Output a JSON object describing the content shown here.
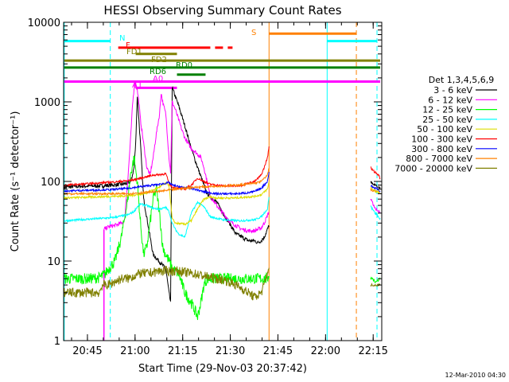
{
  "chart_data": {
    "type": "line",
    "title": "HESSI Observing Summary Count Rates",
    "xlabel": "Start Time (29-Nov-03 20:37:42)",
    "ylabel": "Count Rate (s⁻¹ detector⁻¹)",
    "yscale": "log",
    "ylim": [
      1,
      10000
    ],
    "xlim_minutes": [
      -0.2,
      100
    ],
    "x_ticks": [
      {
        "label": "20:45",
        "value": 7.3
      },
      {
        "label": "21:00",
        "value": 22.3
      },
      {
        "label": "21:15",
        "value": 37.3
      },
      {
        "label": "21:30",
        "value": 52.3
      },
      {
        "label": "21:45",
        "value": 67.3
      },
      {
        "label": "22:00",
        "value": 82.3
      },
      {
        "label": "22:15",
        "value": 97.3
      }
    ],
    "y_ticks": [
      {
        "label": "1",
        "value": 1
      },
      {
        "label": "10",
        "value": 10
      },
      {
        "label": "100",
        "value": 100
      },
      {
        "label": "1000",
        "value": 1000
      },
      {
        "label": "10000",
        "value": 10000
      }
    ],
    "legend_title": "Det 1,3,4,5,6,9",
    "series": [
      {
        "name": "3 - 6 keV",
        "color": "#000000",
        "x": [
          0,
          5,
          10,
          12,
          15,
          18,
          20,
          21,
          22,
          22.5,
          23,
          24,
          25,
          28,
          32,
          33,
          33.5,
          34,
          36,
          38,
          40,
          42,
          44,
          45,
          48,
          50,
          52,
          54,
          56,
          58,
          60,
          61,
          62,
          63,
          64.5
        ],
        "y": [
          85,
          87,
          88,
          88,
          90,
          92,
          95,
          100,
          150,
          300,
          1200,
          300,
          60,
          12,
          8,
          4,
          3,
          1500,
          900,
          500,
          260,
          150,
          90,
          70,
          55,
          40,
          30,
          22,
          20,
          18,
          18,
          17,
          18,
          20,
          28
        ]
      },
      {
        "name": "6 - 12 keV",
        "color": "#ff00ff",
        "x": [
          12.5,
          14,
          16,
          18,
          19,
          19.5,
          20,
          20.5,
          21,
          21.5,
          22,
          22.3,
          22.6,
          23,
          23.5,
          24,
          25,
          26,
          27,
          28,
          29,
          30,
          30.5,
          31,
          32,
          33,
          33.5,
          34,
          35,
          36,
          37,
          38,
          39,
          40,
          41,
          42,
          43,
          44,
          45,
          46,
          48,
          50,
          52,
          54,
          56,
          58,
          60,
          62,
          63,
          64.5
        ],
        "y": [
          25,
          27,
          28,
          30,
          32,
          60,
          100,
          200,
          400,
          900,
          1500,
          1800,
          1700,
          1400,
          1000,
          600,
          300,
          150,
          120,
          200,
          400,
          700,
          1300,
          1000,
          700,
          200,
          130,
          1000,
          800,
          600,
          450,
          350,
          300,
          260,
          240,
          220,
          200,
          150,
          100,
          65,
          50,
          40,
          32,
          28,
          25,
          24,
          24,
          26,
          30,
          42
        ]
      },
      {
        "name": "12 - 25 keV",
        "color": "#00ff00",
        "x": [
          0,
          4,
          8,
          11,
          12,
          13,
          14,
          16,
          18,
          20,
          21,
          22,
          23,
          24,
          25,
          26,
          27,
          28,
          29,
          30,
          31,
          32,
          33,
          34,
          36,
          38,
          40,
          42,
          43,
          44,
          45,
          46,
          48,
          50,
          52,
          54,
          56,
          58,
          60,
          62,
          64,
          64.5
        ],
        "y": [
          6,
          6,
          6,
          6.2,
          6.5,
          7,
          8,
          10,
          20,
          60,
          130,
          200,
          100,
          30,
          12,
          15,
          30,
          60,
          80,
          40,
          15,
          12,
          10,
          8,
          7,
          4,
          3,
          2,
          3,
          5,
          6,
          6,
          6,
          6,
          6,
          6,
          6,
          6,
          6,
          6,
          6,
          7
        ]
      },
      {
        "name": "25 - 50 keV",
        "color": "#00ffff",
        "x": [
          0,
          5,
          10,
          15,
          20,
          22,
          23,
          24,
          26,
          28,
          30,
          32,
          33,
          34,
          35,
          36,
          38,
          40,
          42,
          44,
          46,
          50,
          55,
          60,
          62,
          64,
          64.5
        ],
        "y": [
          32,
          33,
          34,
          35,
          38,
          42,
          48,
          52,
          50,
          46,
          45,
          47,
          42,
          30,
          25,
          22,
          20,
          40,
          55,
          48,
          36,
          33,
          32,
          33,
          36,
          45,
          65
        ]
      },
      {
        "name": "50 - 100 keV",
        "color": "#dddd00",
        "x": [
          0,
          5,
          10,
          15,
          20,
          23,
          25,
          27,
          30,
          32,
          33,
          34,
          35,
          38,
          40,
          42,
          44,
          46,
          48,
          50,
          52,
          54,
          56,
          58,
          60,
          62,
          64,
          64.5
        ],
        "y": [
          62,
          63,
          64,
          65,
          66,
          68,
          70,
          75,
          85,
          95,
          90,
          34,
          30,
          29,
          32,
          45,
          60,
          64,
          62,
          62,
          62,
          62,
          63,
          64,
          65,
          68,
          80,
          100
        ]
      },
      {
        "name": "100 - 300 keV",
        "color": "#ff0000",
        "x": [
          0,
          5,
          10,
          15,
          20,
          22,
          24,
          26,
          28,
          30,
          32,
          33,
          34,
          36,
          38,
          40,
          42,
          44,
          46,
          48,
          50,
          52,
          54,
          56,
          58,
          60,
          62,
          63,
          64,
          64.5
        ],
        "y": [
          90,
          92,
          95,
          98,
          102,
          105,
          110,
          115,
          120,
          122,
          125,
          95,
          85,
          82,
          80,
          90,
          110,
          100,
          92,
          90,
          88,
          88,
          88,
          90,
          95,
          100,
          120,
          150,
          200,
          270
        ]
      },
      {
        "name": "300 - 800 keV",
        "color": "#0000ff",
        "x": [
          0,
          5,
          10,
          15,
          20,
          22,
          25,
          28,
          30,
          32,
          33,
          34,
          36,
          38,
          40,
          42,
          44,
          46,
          48,
          50,
          52,
          54,
          56,
          58,
          60,
          62,
          64,
          64.5
        ],
        "y": [
          76,
          77,
          78,
          79,
          82,
          84,
          87,
          90,
          92,
          95,
          97,
          90,
          86,
          84,
          82,
          78,
          74,
          72,
          70,
          70,
          70,
          70,
          71,
          72,
          75,
          82,
          100,
          130
        ]
      },
      {
        "name": "800 - 7000 keV",
        "color": "#ff8000",
        "x": [
          0,
          10,
          20,
          30,
          35,
          40,
          45,
          50,
          55,
          60,
          62,
          64,
          64.5
        ],
        "y": [
          70,
          70,
          70,
          75,
          80,
          84,
          86,
          88,
          90,
          95,
          100,
          120,
          150
        ]
      },
      {
        "name": "7000 - 20000 keV",
        "color": "#808000",
        "x": [
          0,
          5,
          8,
          10,
          11,
          12,
          14,
          16,
          18,
          20,
          22,
          24,
          26,
          28,
          30,
          32,
          34,
          36,
          38,
          40,
          42,
          44,
          46,
          48,
          50,
          52,
          54,
          56,
          58,
          60,
          62,
          63,
          64,
          64.5
        ],
        "y": [
          4,
          4,
          4,
          4,
          4,
          5,
          5,
          5.5,
          6,
          6,
          6.5,
          7,
          7,
          7.2,
          7.5,
          7.5,
          7.5,
          7.5,
          7.2,
          7,
          6.8,
          6.5,
          6.2,
          6,
          5.8,
          5.5,
          5,
          4.5,
          4,
          3.5,
          4,
          5,
          7,
          9
        ]
      }
    ],
    "right_segments": [
      {
        "color": "#ff0000",
        "x": [
          96.5,
          97,
          98,
          99,
          99.5
        ],
        "y": [
          150,
          140,
          130,
          120,
          110
        ]
      },
      {
        "color": "#000000",
        "x": [
          96.5,
          97,
          98,
          99,
          99.5
        ],
        "y": [
          100,
          95,
          90,
          85,
          82
        ]
      },
      {
        "color": "#0000ff",
        "x": [
          96.5,
          97,
          98,
          99,
          99.5
        ],
        "y": [
          90,
          86,
          82,
          78,
          75
        ]
      },
      {
        "color": "#ff8000",
        "x": [
          96.5,
          97,
          98,
          99,
          99.5
        ],
        "y": [
          80,
          78,
          76,
          74,
          72
        ]
      },
      {
        "color": "#dddd00",
        "x": [
          96.5,
          97,
          98,
          99,
          99.5
        ],
        "y": [
          85,
          80,
          75,
          72,
          70
        ]
      },
      {
        "color": "#00ffff",
        "x": [
          96.5,
          97,
          98,
          99,
          99.5
        ],
        "y": [
          50,
          45,
          40,
          36,
          34
        ]
      },
      {
        "color": "#ff00ff",
        "x": [
          96.5,
          97,
          98,
          99,
          99.5
        ],
        "y": [
          60,
          55,
          45,
          42,
          40
        ]
      },
      {
        "color": "#00ff00",
        "x": [
          96.5,
          97,
          98,
          99,
          99.5
        ],
        "y": [
          6,
          6,
          5.5,
          5.8,
          6
        ]
      },
      {
        "color": "#808000",
        "x": [
          96.5,
          97,
          98,
          99,
          99.5
        ],
        "y": [
          5,
          5,
          5,
          5,
          5
        ]
      }
    ],
    "flag_bars": [
      {
        "label": "N",
        "color": "#00ffff",
        "y": 5800,
        "segments": [
          [
            0,
            14.5
          ],
          [
            82.8,
            98.5
          ]
        ]
      },
      {
        "label": "S",
        "color": "#ff8000",
        "y": 7200,
        "segments": [
          [
            64.5,
            92
          ]
        ]
      },
      {
        "label": "F",
        "color": "#ff0000",
        "y": 4800,
        "segments": [
          [
            17,
            46
          ],
          [
            47.5,
            50
          ],
          [
            51.5,
            53
          ]
        ]
      },
      {
        "label": "FD1",
        "color": "#808000",
        "y": 4000,
        "segments": [
          [
            22.5,
            35.5
          ]
        ]
      },
      {
        "label": "FD2",
        "color": "#808000",
        "y": 3300,
        "segments": [
          [
            0,
            99.5
          ]
        ]
      },
      {
        "label": "RD0",
        "color": "#008000",
        "y": 2700,
        "segments": [
          [
            0,
            99.5
          ]
        ]
      },
      {
        "label": "RD6",
        "color": "#008000",
        "y": 2200,
        "segments": [
          [
            35.5,
            44.5
          ]
        ]
      },
      {
        "label": "A1",
        "color": "#ff00ff",
        "y": 1800,
        "segments": [
          [
            0,
            99.5
          ]
        ]
      },
      {
        "label": "A0",
        "color": "#ff00ff",
        "y": 1500,
        "segments": [
          [
            22.5,
            35.5
          ]
        ]
      }
    ],
    "vertical_lines": [
      {
        "color": "#00ffff",
        "x": 0,
        "style": "solid"
      },
      {
        "color": "#00ffff",
        "x": 14.5,
        "style": "dashed"
      },
      {
        "color": "#ff8000",
        "x": 64.5,
        "style": "solid"
      },
      {
        "color": "#00ffff",
        "x": 82.8,
        "style": "solid"
      },
      {
        "color": "#ff8000",
        "x": 92,
        "style": "dashed"
      },
      {
        "color": "#00ffff",
        "x": 98.5,
        "style": "dashed"
      }
    ],
    "flag_drops": [
      {
        "color": "#ff00ff",
        "x": 12.5,
        "y_from": 25,
        "y_to": 1
      },
      {
        "color": "#ff00ff",
        "x": 22.3,
        "y_from": 1800,
        "y_to": 1500
      }
    ],
    "grid": false,
    "legend_position": "right"
  },
  "footer": {
    "date_stamp": "12-Mar-2010 04:30"
  }
}
